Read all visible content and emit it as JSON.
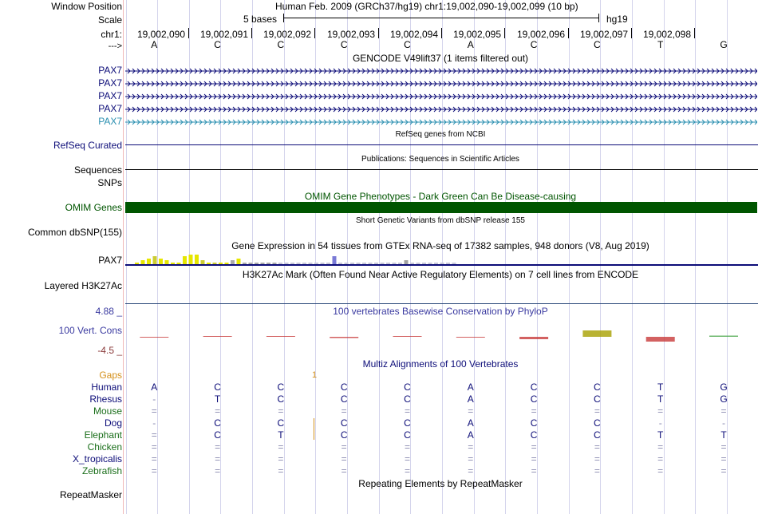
{
  "header": {
    "window_position_label": "Window Position",
    "window_position_value": "Human Feb. 2009 (GRCh37/hg19)   chr1:19,002,090-19,002,099 (10 bp)",
    "scale_label": "Scale",
    "scale_bases": "5 bases",
    "scale_assembly": "hg19",
    "chrom_label": "chr1:",
    "arrow_label": "--->"
  },
  "coordinates": [
    "19,002,090",
    "19,002,091",
    "19,002,092",
    "19,002,093",
    "19,002,094",
    "19,002,095",
    "19,002,096",
    "19,002,097",
    "19,002,098"
  ],
  "bases": [
    "A",
    "C",
    "C",
    "C",
    "C",
    "A",
    "C",
    "C",
    "T",
    "G"
  ],
  "gencode": {
    "title": "GENCODE V49lift37 (1 items filtered out)",
    "genes": [
      "PAX7",
      "PAX7",
      "PAX7",
      "PAX7",
      "PAX7"
    ],
    "colors": [
      "#0c0c78",
      "#0c0c78",
      "#0c0c78",
      "#0c0c78",
      "#2a8fb0"
    ]
  },
  "refseq": {
    "title": "RefSeq genes from NCBI",
    "label": "RefSeq Curated"
  },
  "publications": {
    "title": "Publications: Sequences in Scientific Articles",
    "label": "Sequences"
  },
  "snps_label": "SNPs",
  "omim": {
    "title": "OMIM Gene Phenotypes - Dark Green Can Be Disease-causing",
    "label": "OMIM Genes",
    "color": "#005500"
  },
  "dbsnp": {
    "title": "Short Genetic Variants from dbSNP release 155",
    "label": "Common dbSNP(155)"
  },
  "gtex": {
    "title": "Gene Expression in 54 tissues from GTEx RNA-seq of 17382 samples, 948 donors (V8, Aug 2019)",
    "label": "PAX7",
    "tissue_values": [
      0.05,
      0.1,
      0.15,
      0.2,
      0.15,
      0.1,
      0.05,
      0.05,
      0.2,
      0.25,
      0.25,
      0.1,
      0.05,
      0.05,
      0.05,
      0.05,
      0.1,
      0.15,
      0.05,
      0.05,
      0.05,
      0.05,
      0.05,
      0.05,
      0.05,
      0.05,
      0.05,
      0.05,
      0.05,
      0.05,
      0.05,
      0.05,
      0.05,
      0.2,
      0.05,
      0.05,
      0.05,
      0.05,
      0.05,
      0.05,
      0.05,
      0.05,
      0.05,
      0.05,
      0.05,
      0.1,
      0.05,
      0.05,
      0.05,
      0.05,
      0.05,
      0.05,
      0.05,
      0.05
    ]
  },
  "h3k27ac": {
    "title": "H3K27Ac Mark (Often Found Near Active Regulatory Elements) on 7 cell lines from ENCODE",
    "label": "Layered H3K27Ac"
  },
  "conservation": {
    "title": "100 vertebrates Basewise Conservation by PhyloP",
    "label": "100 Vert. Cons",
    "ymax": "4.88 _",
    "ymin": "-4.5 _",
    "scores": [
      -0.1,
      0.0,
      0.0,
      -0.15,
      0.0,
      -0.1,
      -0.3,
      0.8,
      -0.6,
      0.15
    ]
  },
  "multiz": {
    "title": "Multiz Alignments of 100 Vertebrates",
    "gaps_label": "Gaps",
    "gap_count": "1",
    "species": [
      {
        "name": "Human",
        "color": "#0c0c78",
        "seq": [
          "A",
          "C",
          "C",
          "C",
          "C",
          "A",
          "C",
          "C",
          "T",
          "G"
        ]
      },
      {
        "name": "Rhesus",
        "color": "#0c0c78",
        "seq": [
          "-",
          "T",
          "C",
          "C",
          "C",
          "A",
          "C",
          "C",
          "T",
          "G"
        ]
      },
      {
        "name": "Mouse",
        "color": "#1a6e1a",
        "seq": [
          "=",
          "=",
          "=",
          "=",
          "=",
          "=",
          "=",
          "=",
          "=",
          "="
        ]
      },
      {
        "name": "Dog",
        "color": "#0c0c78",
        "seq": [
          "-",
          "C",
          "C",
          "C",
          "C",
          "A",
          "C",
          "C",
          "-",
          "-"
        ]
      },
      {
        "name": "Elephant",
        "color": "#1a6e1a",
        "seq": [
          "=",
          "C",
          "T",
          "C",
          "C",
          "A",
          "C",
          "C",
          "T",
          "T"
        ]
      },
      {
        "name": "Chicken",
        "color": "#1a6e1a",
        "seq": [
          "=",
          "=",
          "=",
          "=",
          "=",
          "=",
          "=",
          "=",
          "=",
          "="
        ]
      },
      {
        "name": "X_tropicalis",
        "color": "#0c0c78",
        "seq": [
          "=",
          "=",
          "=",
          "=",
          "=",
          "=",
          "=",
          "=",
          "=",
          "="
        ]
      },
      {
        "name": "Zebrafish",
        "color": "#1a6e1a",
        "seq": [
          "=",
          "=",
          "=",
          "=",
          "=",
          "=",
          "=",
          "=",
          "=",
          "="
        ]
      }
    ]
  },
  "repeatmasker": {
    "title": "Repeating Elements by RepeatMasker",
    "label": "RepeatMasker"
  }
}
